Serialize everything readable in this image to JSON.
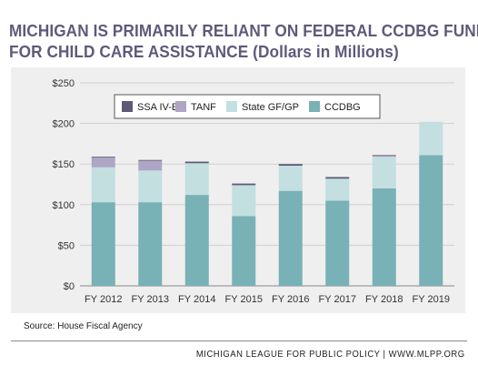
{
  "title_line1": "MICHIGAN IS PRIMARILY RELIANT ON FEDERAL CCDBG FUNDS",
  "title_line2": "FOR CHILD CARE ASSISTANCE (Dollars in Millions)",
  "source": "Source: House Fiscal Agency",
  "footer": "MICHIGAN LEAGUE FOR PUBLIC POLICY | WWW.MLPP.ORG",
  "chart_data": {
    "type": "bar",
    "stacked": true,
    "categories": [
      "FY 2012",
      "FY 2013",
      "FY 2014",
      "FY 2015",
      "FY 2016",
      "FY 2017",
      "FY 2018",
      "FY 2019"
    ],
    "series": [
      {
        "name": "CCDBG",
        "color": "#78b1b6",
        "values": [
          103,
          103,
          112,
          86,
          117,
          105,
          120,
          161
        ]
      },
      {
        "name": "State GF/GP",
        "color": "#c3dfe0",
        "values": [
          43,
          39,
          39,
          38,
          31,
          27,
          39,
          41
        ]
      },
      {
        "name": "TANF",
        "color": "#aea6c4",
        "values": [
          12,
          12,
          0,
          0,
          0,
          0,
          1,
          0
        ]
      },
      {
        "name": "SSA IV-E",
        "color": "#5d5976",
        "values": [
          1,
          1,
          2,
          2,
          2,
          2,
          1,
          0
        ]
      }
    ],
    "legend_order": [
      "SSA IV-E",
      "TANF",
      "State GF/GP",
      "CCDBG"
    ],
    "ylim": [
      0,
      250
    ],
    "yticks": [
      0,
      50,
      100,
      150,
      200,
      250
    ],
    "ytick_labels": [
      "$0",
      "$50",
      "$100",
      "$150",
      "$200",
      "$250"
    ],
    "grid": true,
    "legend_position": "top"
  }
}
